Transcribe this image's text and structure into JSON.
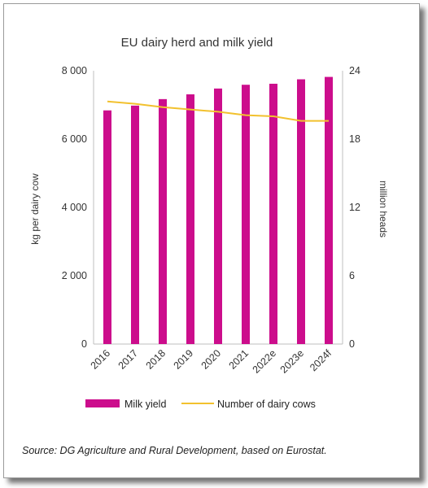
{
  "chart_data": {
    "type": "bar",
    "title": "EU dairy herd and milk yield",
    "categories": [
      "2016",
      "2017",
      "2018",
      "2019",
      "2020",
      "2021",
      "2022e",
      "2023e",
      "2024f"
    ],
    "ylabel": "kg per dairy cow",
    "y2label": "million heads",
    "ylim": [
      0,
      8000
    ],
    "y2lim": [
      0,
      24
    ],
    "yticks": [
      "0",
      "2 000",
      "4 000",
      "6 000",
      "8 000"
    ],
    "y2ticks": [
      "0",
      "6",
      "12",
      "18",
      "24"
    ],
    "grid": false,
    "legend_position": "bottom",
    "series": [
      {
        "name": "Milk yield",
        "type": "bar",
        "axis": "left",
        "color": "#cc0d8c",
        "values": [
          6840,
          6980,
          7170,
          7310,
          7480,
          7590,
          7620,
          7750,
          7820
        ]
      },
      {
        "name": "Number of dairy cows",
        "type": "line",
        "axis": "right",
        "color": "#f2c12e",
        "values": [
          21.3,
          21.1,
          20.8,
          20.6,
          20.4,
          20.1,
          20.0,
          19.6,
          19.6
        ]
      }
    ]
  },
  "source": "Source: DG Agriculture and Rural Development, based on Eurostat."
}
